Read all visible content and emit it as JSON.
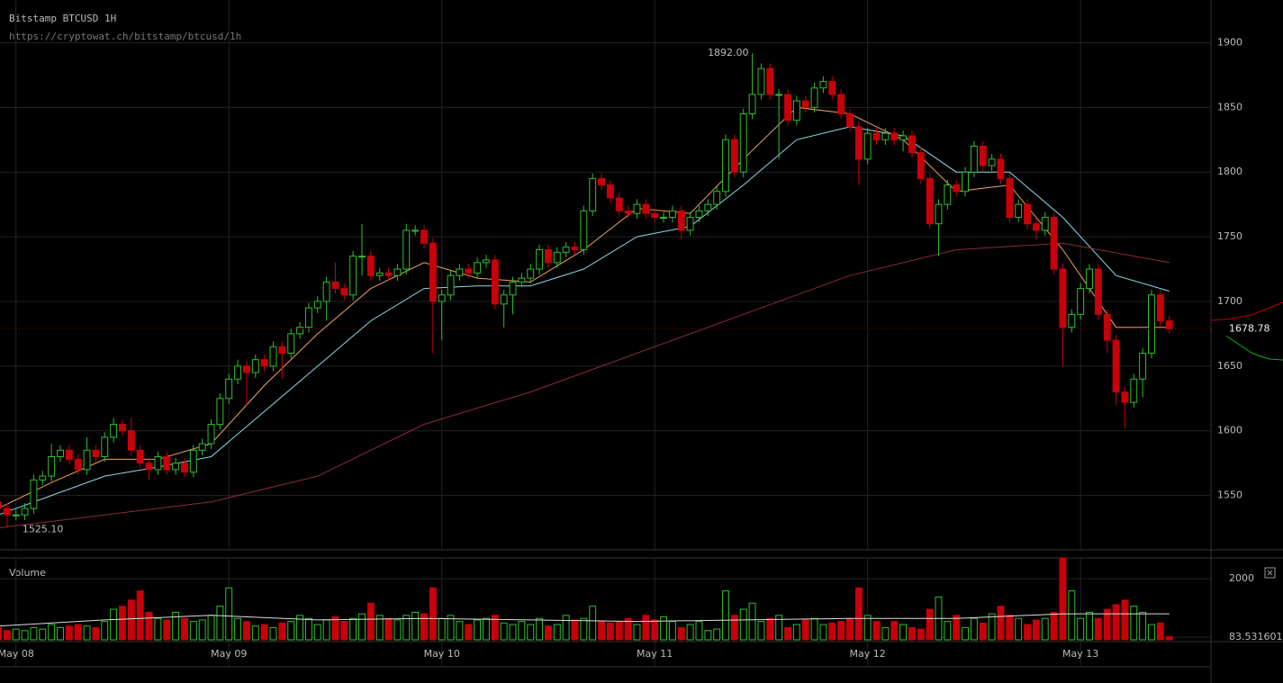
{
  "chart_data": {
    "type": "candlestick",
    "title": "Bitstamp BTCUSD 1H",
    "subtitle": "https://cryptowat.ch/bitstamp/btcusd/1h",
    "volume_label": "Volume",
    "up_color": "#2fbf2f",
    "down_color": "#c8000a",
    "grid": true,
    "xlim": [
      0.2,
      136.7
    ],
    "xticks": [
      {
        "value": 2,
        "label": "May 08"
      },
      {
        "value": 26,
        "label": "May 09"
      },
      {
        "value": 50,
        "label": "May 10"
      },
      {
        "value": 74,
        "label": "May 11"
      },
      {
        "value": 98,
        "label": "May 12"
      },
      {
        "value": 122,
        "label": "May 13"
      }
    ],
    "ylim": [
      1508,
      1933
    ],
    "yticks": [
      1550,
      1600,
      1650,
      1700,
      1750,
      1800,
      1850,
      1900
    ],
    "volume_ylim": [
      0,
      2680
    ],
    "volume_yticks": [
      83.531601,
      2000
    ],
    "last_price": 1678.78,
    "annotations": [
      {
        "text": "1892.00",
        "x": 85,
        "y": 1892
      },
      {
        "text": "1525.10",
        "x": 1,
        "y": 1525.1
      }
    ],
    "open": [
      1545,
      1540,
      1535,
      1535,
      1540,
      1562,
      1565,
      1580,
      1585,
      1578,
      1570,
      1585,
      1580,
      1595,
      1605,
      1600,
      1585,
      1575,
      1570,
      1580,
      1570,
      1575,
      1568,
      1585,
      1590,
      1605,
      1625,
      1640,
      1650,
      1645,
      1655,
      1650,
      1665,
      1660,
      1675,
      1680,
      1695,
      1700,
      1715,
      1710,
      1705,
      1735,
      1735,
      1720,
      1722,
      1720,
      1725,
      1755,
      1755,
      1745,
      1700,
      1705,
      1720,
      1725,
      1722,
      1730,
      1732,
      1698,
      1705,
      1715,
      1718,
      1725,
      1740,
      1730,
      1738,
      1742,
      1740,
      1770,
      1795,
      1790,
      1780,
      1770,
      1768,
      1775,
      1768,
      1765,
      1765,
      1770,
      1755,
      1765,
      1770,
      1775,
      1785,
      1825,
      1800,
      1845,
      1860,
      1880,
      1860,
      1860,
      1840,
      1855,
      1850,
      1865,
      1870,
      1860,
      1845,
      1835,
      1810,
      1830,
      1825,
      1830,
      1825,
      1828,
      1815,
      1795,
      1760,
      1775,
      1790,
      1785,
      1800,
      1820,
      1805,
      1810,
      1795,
      1765,
      1775,
      1760,
      1755,
      1765,
      1725,
      1680,
      1690,
      1710,
      1725,
      1690,
      1670,
      1630,
      1622,
      1640,
      1660,
      1705,
      1685
    ],
    "high": [
      1549,
      1544,
      1539,
      1544,
      1566,
      1569,
      1590,
      1589,
      1589,
      1582,
      1595,
      1589,
      1599,
      1610,
      1609,
      1610,
      1589,
      1579,
      1584,
      1584,
      1579,
      1579,
      1589,
      1594,
      1609,
      1629,
      1644,
      1655,
      1654,
      1659,
      1659,
      1669,
      1669,
      1679,
      1684,
      1699,
      1704,
      1719,
      1730,
      1714,
      1739,
      1760,
      1739,
      1726,
      1726,
      1729,
      1760,
      1759,
      1759,
      1749,
      1709,
      1724,
      1729,
      1729,
      1734,
      1736,
      1736,
      1709,
      1719,
      1722,
      1729,
      1744,
      1744,
      1742,
      1746,
      1746,
      1774,
      1799,
      1799,
      1794,
      1784,
      1774,
      1779,
      1779,
      1772,
      1769,
      1774,
      1774,
      1769,
      1774,
      1779,
      1789,
      1829,
      1829,
      1849,
      1892,
      1884,
      1884,
      1864,
      1864,
      1859,
      1859,
      1869,
      1874,
      1874,
      1864,
      1849,
      1839,
      1834,
      1834,
      1834,
      1834,
      1832,
      1832,
      1819,
      1799,
      1779,
      1794,
      1794,
      1804,
      1824,
      1824,
      1814,
      1814,
      1799,
      1779,
      1779,
      1764,
      1769,
      1769,
      1729,
      1694,
      1714,
      1729,
      1729,
      1694,
      1674,
      1634,
      1644,
      1664,
      1709,
      1709,
      1689
    ],
    "low": [
      1536,
      1525.1,
      1531,
      1531,
      1536,
      1558,
      1561,
      1576,
      1574,
      1566,
      1566,
      1576,
      1576,
      1591,
      1596,
      1581,
      1571,
      1562,
      1566,
      1566,
      1566,
      1564,
      1564,
      1581,
      1586,
      1601,
      1621,
      1636,
      1620,
      1641,
      1646,
      1646,
      1640,
      1656,
      1671,
      1676,
      1691,
      1685,
      1706,
      1701,
      1701,
      1720,
      1716,
      1716,
      1716,
      1716,
      1721,
      1751,
      1741,
      1660,
      1670,
      1701,
      1716,
      1718,
      1718,
      1726,
      1694,
      1680,
      1690,
      1711,
      1714,
      1721,
      1726,
      1726,
      1734,
      1736,
      1736,
      1766,
      1786,
      1776,
      1766,
      1764,
      1764,
      1764,
      1761,
      1761,
      1761,
      1748,
      1751,
      1761,
      1766,
      1771,
      1781,
      1796,
      1796,
      1841,
      1856,
      1856,
      1810,
      1836,
      1836,
      1846,
      1846,
      1861,
      1856,
      1841,
      1831,
      1790,
      1806,
      1821,
      1821,
      1821,
      1816,
      1811,
      1791,
      1756,
      1735,
      1771,
      1781,
      1781,
      1796,
      1801,
      1801,
      1791,
      1761,
      1761,
      1756,
      1748,
      1751,
      1721,
      1650,
      1676,
      1686,
      1706,
      1686,
      1660,
      1620,
      1602,
      1618,
      1626,
      1656,
      1681,
      1675
    ],
    "close": [
      1540,
      1535,
      1535,
      1540,
      1562,
      1565,
      1580,
      1585,
      1578,
      1570,
      1585,
      1580,
      1595,
      1605,
      1600,
      1585,
      1575,
      1570,
      1580,
      1570,
      1575,
      1568,
      1585,
      1590,
      1605,
      1625,
      1640,
      1650,
      1645,
      1655,
      1650,
      1665,
      1660,
      1675,
      1680,
      1695,
      1700,
      1715,
      1710,
      1705,
      1735,
      1735,
      1720,
      1722,
      1720,
      1725,
      1755,
      1755,
      1745,
      1700,
      1705,
      1720,
      1725,
      1722,
      1730,
      1732,
      1698,
      1705,
      1715,
      1718,
      1725,
      1740,
      1730,
      1738,
      1742,
      1740,
      1770,
      1795,
      1790,
      1780,
      1770,
      1768,
      1775,
      1768,
      1765,
      1765,
      1770,
      1755,
      1765,
      1770,
      1775,
      1785,
      1825,
      1800,
      1845,
      1860,
      1880,
      1860,
      1860,
      1840,
      1855,
      1850,
      1865,
      1870,
      1860,
      1845,
      1835,
      1810,
      1830,
      1825,
      1830,
      1825,
      1828,
      1815,
      1795,
      1760,
      1775,
      1790,
      1785,
      1800,
      1820,
      1805,
      1810,
      1795,
      1765,
      1775,
      1760,
      1755,
      1765,
      1725,
      1680,
      1690,
      1710,
      1725,
      1690,
      1670,
      1630,
      1622,
      1640,
      1660,
      1705,
      1685,
      1678.78
    ],
    "volume": [
      400,
      300,
      350,
      300,
      400,
      350,
      500,
      400,
      450,
      500,
      450,
      400,
      600,
      1000,
      1100,
      1300,
      1600,
      900,
      700,
      650,
      900,
      700,
      600,
      650,
      800,
      1100,
      1700,
      700,
      600,
      450,
      500,
      400,
      550,
      600,
      800,
      700,
      500,
      650,
      750,
      600,
      700,
      850,
      1200,
      800,
      700,
      650,
      800,
      900,
      850,
      1700,
      700,
      800,
      600,
      500,
      650,
      700,
      800,
      550,
      500,
      600,
      500,
      700,
      450,
      500,
      800,
      650,
      700,
      1100,
      600,
      550,
      600,
      700,
      500,
      800,
      650,
      750,
      600,
      400,
      500,
      600,
      300,
      350,
      1600,
      800,
      1000,
      1200,
      600,
      700,
      800,
      400,
      500,
      650,
      700,
      500,
      550,
      600,
      700,
      1700,
      800,
      600,
      400,
      600,
      500,
      400,
      350,
      1000,
      1400,
      600,
      800,
      400,
      700,
      550,
      850,
      1100,
      800,
      700,
      500,
      650,
      700,
      900,
      2680,
      1600,
      700,
      900,
      700,
      1000,
      1150,
      1300,
      1100,
      900,
      500,
      550,
      100
    ],
    "overlays": [
      {
        "color": "#f0a060",
        "x": [
          0,
          6,
          12,
          18,
          24,
          30,
          36,
          42,
          48,
          54,
          60,
          66,
          72,
          78,
          84,
          90,
          96,
          102,
          108,
          114,
          120,
          126,
          132
        ],
        "values": [
          1540,
          1560,
          1578,
          1578,
          1590,
          1635,
          1675,
          1710,
          1730,
          1718,
          1715,
          1740,
          1772,
          1768,
          1810,
          1850,
          1845,
          1825,
          1785,
          1790,
          1740,
          1680,
          1680
        ]
      },
      {
        "color": "#8fd8e8",
        "x": [
          0,
          6,
          12,
          18,
          24,
          30,
          36,
          42,
          48,
          54,
          60,
          66,
          72,
          78,
          84,
          90,
          96,
          102,
          108,
          114,
          120,
          126,
          132
        ],
        "values": [
          1535,
          1550,
          1565,
          1572,
          1580,
          1615,
          1650,
          1685,
          1710,
          1712,
          1712,
          1725,
          1750,
          1758,
          1790,
          1825,
          1835,
          1828,
          1800,
          1800,
          1765,
          1720,
          1708
        ]
      },
      {
        "color": "#8a2a3a",
        "x": [
          0,
          12,
          24,
          36,
          48,
          60,
          72,
          84,
          96,
          108,
          120,
          132
        ],
        "values": [
          1525,
          1535,
          1545,
          1565,
          1605,
          1630,
          1660,
          1690,
          1720,
          1740,
          1745,
          1730
        ]
      }
    ],
    "volume_average": {
      "color": "#dddddd",
      "x": [
        0,
        12,
        24,
        36,
        48,
        60,
        72,
        84,
        96,
        108,
        120,
        132
      ],
      "values": [
        450,
        650,
        800,
        650,
        700,
        650,
        600,
        650,
        700,
        700,
        850,
        850
      ]
    }
  }
}
